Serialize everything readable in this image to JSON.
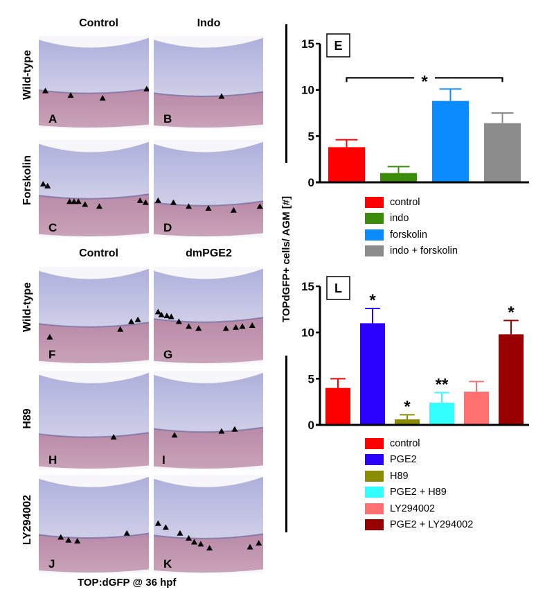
{
  "figure": {
    "columns_top": [
      "Control",
      "Indo"
    ],
    "rows_top": [
      "Wild-type",
      "Forskolin"
    ],
    "columns_bottom": [
      "Control",
      "dmPGE2"
    ],
    "rows_bottom": [
      "Wild-type",
      "H89",
      "LY294002"
    ],
    "panels": [
      {
        "letter": "A",
        "arrowheads": 4
      },
      {
        "letter": "B",
        "arrowheads": 1
      },
      {
        "letter": "C",
        "arrowheads": 9
      },
      {
        "letter": "D",
        "arrowheads": 6
      },
      {
        "letter": "F",
        "arrowheads": 4
      },
      {
        "letter": "G",
        "arrowheads": 11
      },
      {
        "letter": "H",
        "arrowheads": 1
      },
      {
        "letter": "I",
        "arrowheads": 3
      },
      {
        "letter": "J",
        "arrowheads": 4
      },
      {
        "letter": "K",
        "arrowheads": 9
      }
    ],
    "caption": "TOP:dGFP @ 36 hpf",
    "shared_ylabel": "TOPdGFP+ cells/ AGM [#]"
  },
  "chart_data": [
    {
      "type": "bar",
      "panel_label": "E",
      "title": "",
      "xlabel": "",
      "ylabel": "TOPdGFP+ cells/ AGM [#]",
      "ylim": [
        0,
        15
      ],
      "yticks": [
        0,
        5,
        10,
        15
      ],
      "grid": false,
      "legend_position": "bottom",
      "categories": [
        "control",
        "indo",
        "forskolin",
        "indo + forskolin"
      ],
      "values": [
        3.8,
        1.0,
        8.8,
        6.4
      ],
      "error_upper": [
        4.6,
        1.7,
        10.1,
        7.5
      ],
      "colors": [
        "#ff0000",
        "#3a8c0a",
        "#0a8cff",
        "#8c8c8c"
      ],
      "annotations": [
        {
          "type": "bracket",
          "from": "control",
          "to": "indo + forskolin",
          "text": "*",
          "y": 11.3
        }
      ]
    },
    {
      "type": "bar",
      "panel_label": "L",
      "title": "",
      "xlabel": "",
      "ylabel": "TOPdGFP+ cells/ AGM [#]",
      "ylim": [
        0,
        15
      ],
      "yticks": [
        0,
        5,
        10,
        15
      ],
      "grid": false,
      "legend_position": "bottom",
      "categories": [
        "control",
        "PGE2",
        "H89",
        "PGE2 + H89",
        "LY294002",
        "PGE2 + LY294002"
      ],
      "values": [
        4.0,
        11.0,
        0.6,
        2.4,
        3.6,
        9.8
      ],
      "error_upper": [
        5.0,
        12.6,
        1.1,
        3.5,
        4.7,
        11.3
      ],
      "colors": [
        "#ff0000",
        "#2a00ff",
        "#8c8c00",
        "#33ffff",
        "#ff7070",
        "#990000"
      ],
      "significance": [
        "",
        "*",
        "*",
        "**",
        "",
        "*"
      ]
    }
  ]
}
